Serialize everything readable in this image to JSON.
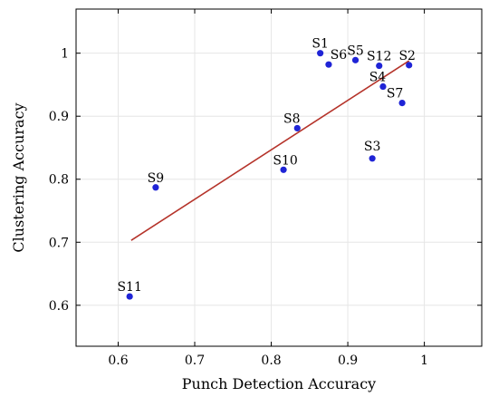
{
  "chart_data": {
    "type": "scatter",
    "xlabel": "Punch Detection Accuracy",
    "ylabel": "Clustering Accuracy",
    "xlim": [
      0.545,
      1.075
    ],
    "ylim": [
      0.535,
      1.07
    ],
    "xticks": [
      0.6,
      0.7,
      0.8,
      0.9,
      1
    ],
    "xtick_labels": [
      "0.6",
      "0.7",
      "0.8",
      "0.9",
      "1"
    ],
    "yticks": [
      0.6,
      0.7,
      0.8,
      0.9,
      1
    ],
    "ytick_labels": [
      "0.6",
      "0.7",
      "0.8",
      "0.9",
      "1"
    ],
    "grid": true,
    "legend": "none",
    "point_color": "#1f24d6",
    "trend_color": "#b5332a",
    "points": [
      {
        "label": "S1",
        "x": 0.864,
        "y": 1.0
      },
      {
        "label": "S6",
        "x": 0.875,
        "y": 0.982
      },
      {
        "label": "S5",
        "x": 0.91,
        "y": 0.989
      },
      {
        "label": "S12",
        "x": 0.941,
        "y": 0.98
      },
      {
        "label": "S2",
        "x": 0.98,
        "y": 0.981
      },
      {
        "label": "S4",
        "x": 0.946,
        "y": 0.947
      },
      {
        "label": "S7",
        "x": 0.971,
        "y": 0.921
      },
      {
        "label": "S8",
        "x": 0.834,
        "y": 0.881
      },
      {
        "label": "S3",
        "x": 0.932,
        "y": 0.833
      },
      {
        "label": "S10",
        "x": 0.816,
        "y": 0.815
      },
      {
        "label": "S9",
        "x": 0.649,
        "y": 0.787
      },
      {
        "label": "S11",
        "x": 0.615,
        "y": 0.614
      }
    ],
    "trend_line": {
      "x": [
        0.617,
        0.98
      ],
      "y": [
        0.703,
        0.988
      ]
    }
  }
}
